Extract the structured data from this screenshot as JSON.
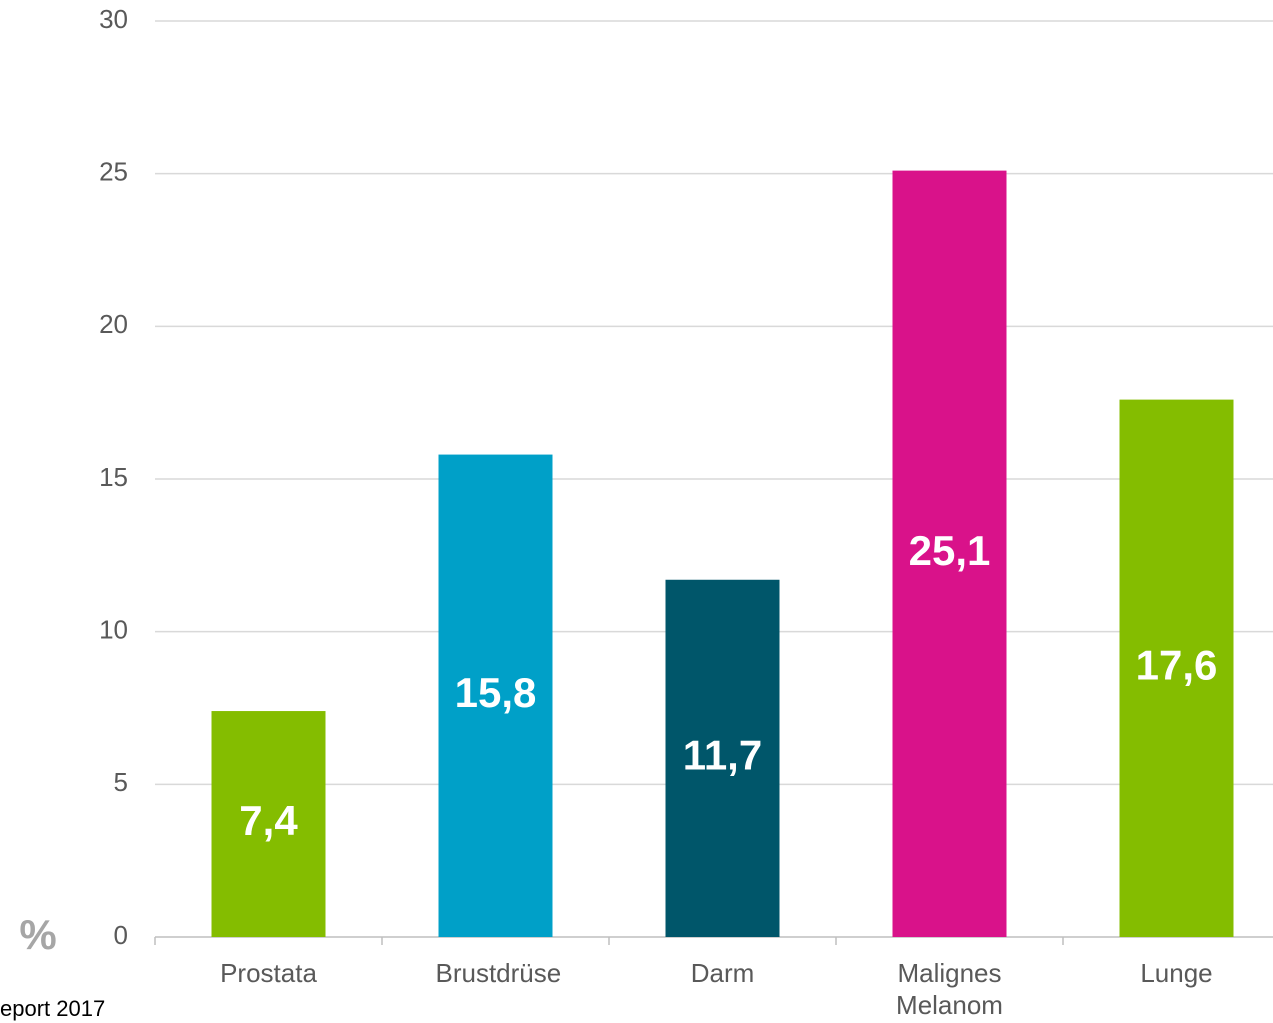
{
  "chart_data": {
    "type": "bar",
    "y_label": "%",
    "source": "eport 2017",
    "categories": [
      "Prostata",
      "Brustdrüse",
      "Darm",
      "Malignes Melanom",
      "Lunge"
    ],
    "values": [
      7.4,
      15.8,
      11.7,
      25.1,
      17.6
    ],
    "value_labels": [
      "7,4",
      "15,8",
      "11,7",
      "25,1",
      "17,6"
    ],
    "colors": [
      "#84bd00",
      "#00a0c8",
      "#00566a",
      "#d9128a",
      "#84bd00"
    ],
    "ylim": [
      0,
      30
    ],
    "yticks": [
      0,
      5,
      10,
      15,
      20,
      25,
      30
    ],
    "grid": true
  }
}
